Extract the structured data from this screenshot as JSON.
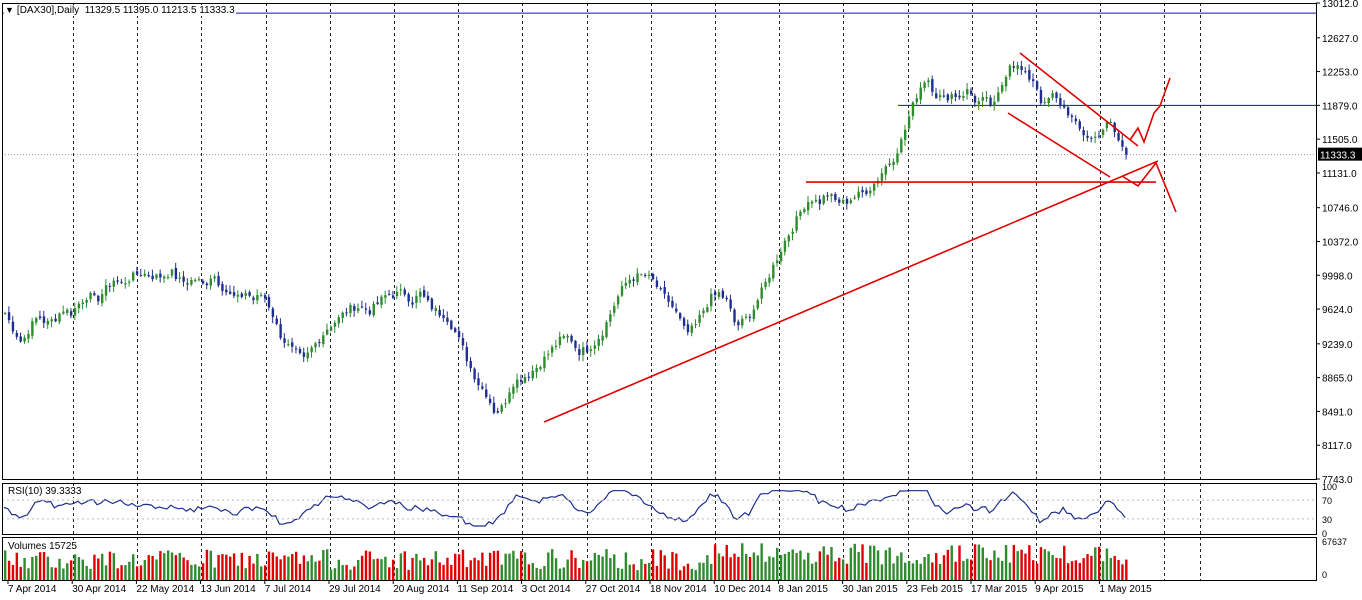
{
  "chart_header": {
    "symbol": "[DAX30],Daily",
    "ohlc": "11329.5 11395.0 11213.5 11333.3"
  },
  "current_price_label": "11333.3",
  "colors": {
    "bull": "#2e8b2e",
    "bear": "#1f2f8f",
    "drawing": "#e00000",
    "hline": "#1010c0",
    "volume_up": "#2e8b2e",
    "volume_down": "#e00000",
    "rsi_line": "#1f2f8f",
    "grid": "#000000"
  },
  "rsi": {
    "label": "RSI(10) 39.3333",
    "axis_labels": [
      "100",
      "70",
      "30",
      "0"
    ],
    "levels": [
      100,
      70,
      30,
      0
    ]
  },
  "volume": {
    "label": "Volumes 15725",
    "axis_labels": [
      "67637",
      "0"
    ],
    "max": 67637
  },
  "chart_data": {
    "type": "candlestick",
    "price_axis_labels": [
      "13012.0",
      "12627.0",
      "12253.0",
      "11879.0",
      "11505.0",
      "11131.0",
      "10746.0",
      "10372.0",
      "9998.0",
      "9624.0",
      "9239.0",
      "8865.0",
      "8491.0",
      "8117.0",
      "7743.0"
    ],
    "price_range": [
      7743.0,
      13012.0
    ],
    "time_axis_labels": [
      "7 Apr 2014",
      "30 Apr 2014",
      "22 May 2014",
      "13 Jun 2014",
      "7 Jul 2014",
      "29 Jul 2014",
      "20 Aug 2014",
      "11 Sep 2014",
      "3 Oct 2014",
      "27 Oct 2014",
      "18 Nov 2014",
      "10 Dec 2014",
      "8 Jan 2015",
      "30 Jan 2015",
      "23 Feb 2015",
      "17 Mar 2015",
      "9 Apr 2015",
      "1 May 2015"
    ],
    "price_path": [
      9580,
      9400,
      9250,
      9420,
      9550,
      9460,
      9520,
      9620,
      9580,
      9700,
      9780,
      9720,
      9830,
      9950,
      9900,
      9960,
      10020,
      10010,
      9980,
      9990,
      10030,
      9940,
      9920,
      9960,
      9880,
      10020,
      9880,
      9780,
      9740,
      9810,
      9720,
      9800,
      9620,
      9360,
      9220,
      9140,
      9060,
      9200,
      9310,
      9440,
      9500,
      9600,
      9650,
      9640,
      9600,
      9700,
      9790,
      9780,
      9820,
      9700,
      9800,
      9680,
      9590,
      9560,
      9400,
      9220,
      8980,
      8800,
      8680,
      8470,
      8550,
      8800,
      8850,
      8900,
      8980,
      9080,
      9200,
      9300,
      9320,
      9150,
      9180,
      9250,
      9380,
      9600,
      9800,
      9950,
      9980,
      10000,
      9940,
      9800,
      9700,
      9550,
      9350,
      9420,
      9600,
      9750,
      9800,
      9700,
      9430,
      9500,
      9600,
      9800,
      10000,
      10200,
      10400,
      10550,
      10750,
      10850,
      10800,
      10900,
      10820,
      10800,
      10850,
      10900,
      10950,
      11050,
      11200,
      11300,
      11500,
      11800,
      12050,
      12200,
      12000,
      11950,
      12000,
      11980,
      12050,
      11900,
      11950,
      11850,
      12100,
      12350,
      12300,
      12200,
      12150,
      11850,
      12000,
      11900,
      11800,
      11650,
      11550,
      11500,
      11600,
      11700,
      11500,
      11333
    ],
    "resistance_level": 11879,
    "neckline_level": 11030,
    "current": {
      "open": 11329.5,
      "high": 11395.0,
      "low": 11213.5,
      "close": 11333.3
    },
    "annotations": {
      "support_trendline": [
        [
          "3 Oct 2014",
          8390
        ],
        [
          "1 May 2015",
          11330
        ]
      ],
      "channel_upper": [
        [
          "17 Mar 2015",
          12560
        ],
        [
          "1 May 2015",
          11480
        ]
      ],
      "channel_lower": [
        [
          "17 Mar 2015",
          11870
        ],
        [
          "1 May 2015",
          11200
        ]
      ]
    }
  }
}
